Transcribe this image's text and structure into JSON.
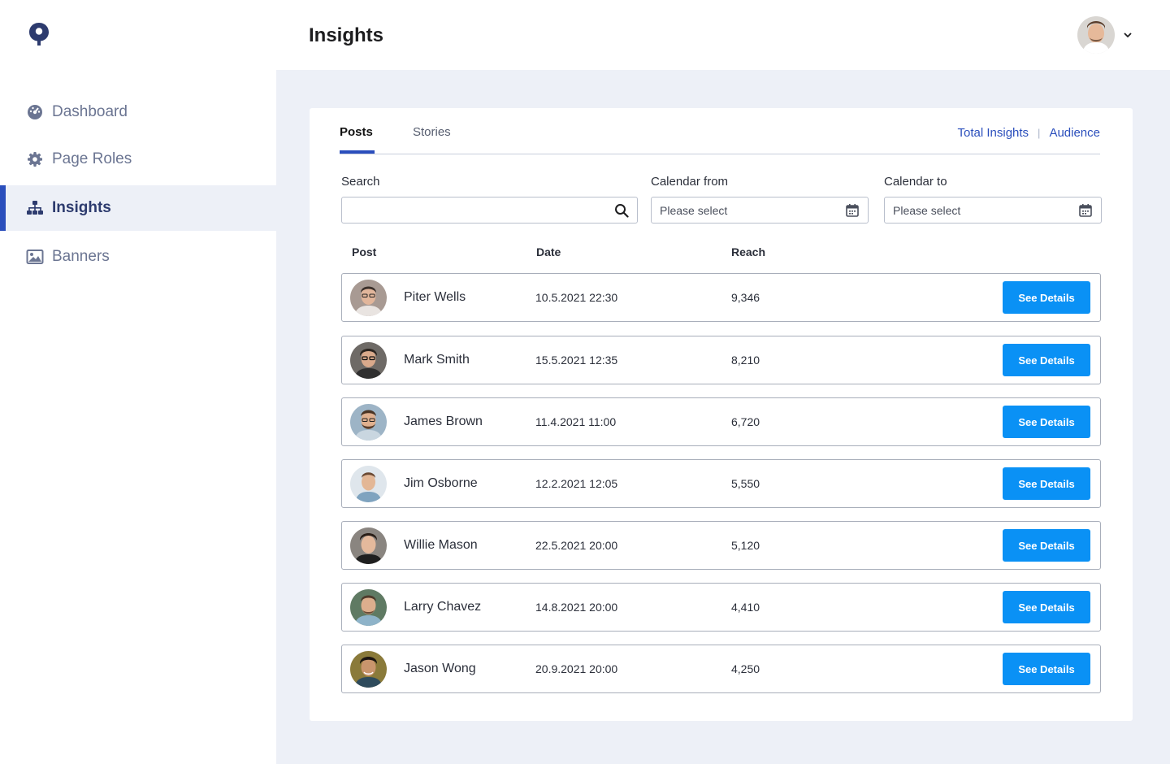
{
  "header": {
    "title": "Insights"
  },
  "sidebar": {
    "items": [
      {
        "label": "Dashboard",
        "icon": "dashboard-icon"
      },
      {
        "label": "Page Roles",
        "icon": "gear-icon"
      },
      {
        "label": "Insights",
        "icon": "sitemap-icon",
        "active": true
      },
      {
        "label": "Banners",
        "icon": "image-icon"
      }
    ]
  },
  "tabs": [
    {
      "label": "Posts",
      "active": true
    },
    {
      "label": "Stories"
    }
  ],
  "links": {
    "total_insights": "Total Insights",
    "audience": "Audience"
  },
  "filters": {
    "search_label": "Search",
    "search_value": "",
    "from_label": "Calendar from",
    "from_placeholder": "Please select",
    "to_label": "Calendar to",
    "to_placeholder": "Please select"
  },
  "table": {
    "columns": [
      "Post",
      "Date",
      "Reach"
    ],
    "button_label": "See Details",
    "rows": [
      {
        "name": "Piter Wells",
        "date": "10.5.2021 22:30",
        "reach": "9,346"
      },
      {
        "name": "Mark Smith",
        "date": "15.5.2021 12:35",
        "reach": "8,210"
      },
      {
        "name": "James Brown",
        "date": "11.4.2021 11:00",
        "reach": "6,720"
      },
      {
        "name": "Jim Osborne",
        "date": "12.2.2021 12:05",
        "reach": "5,550"
      },
      {
        "name": "Willie Mason",
        "date": "22.5.2021 20:00",
        "reach": "5,120"
      },
      {
        "name": "Larry Chavez",
        "date": "14.8.2021 20:00",
        "reach": "4,410"
      },
      {
        "name": "Jason Wong",
        "date": "20.9.2021 20:00",
        "reach": "4,250"
      }
    ]
  },
  "colors": {
    "accent": "#2a4ebc",
    "button": "#0a91f5",
    "background": "#edf0f7"
  }
}
